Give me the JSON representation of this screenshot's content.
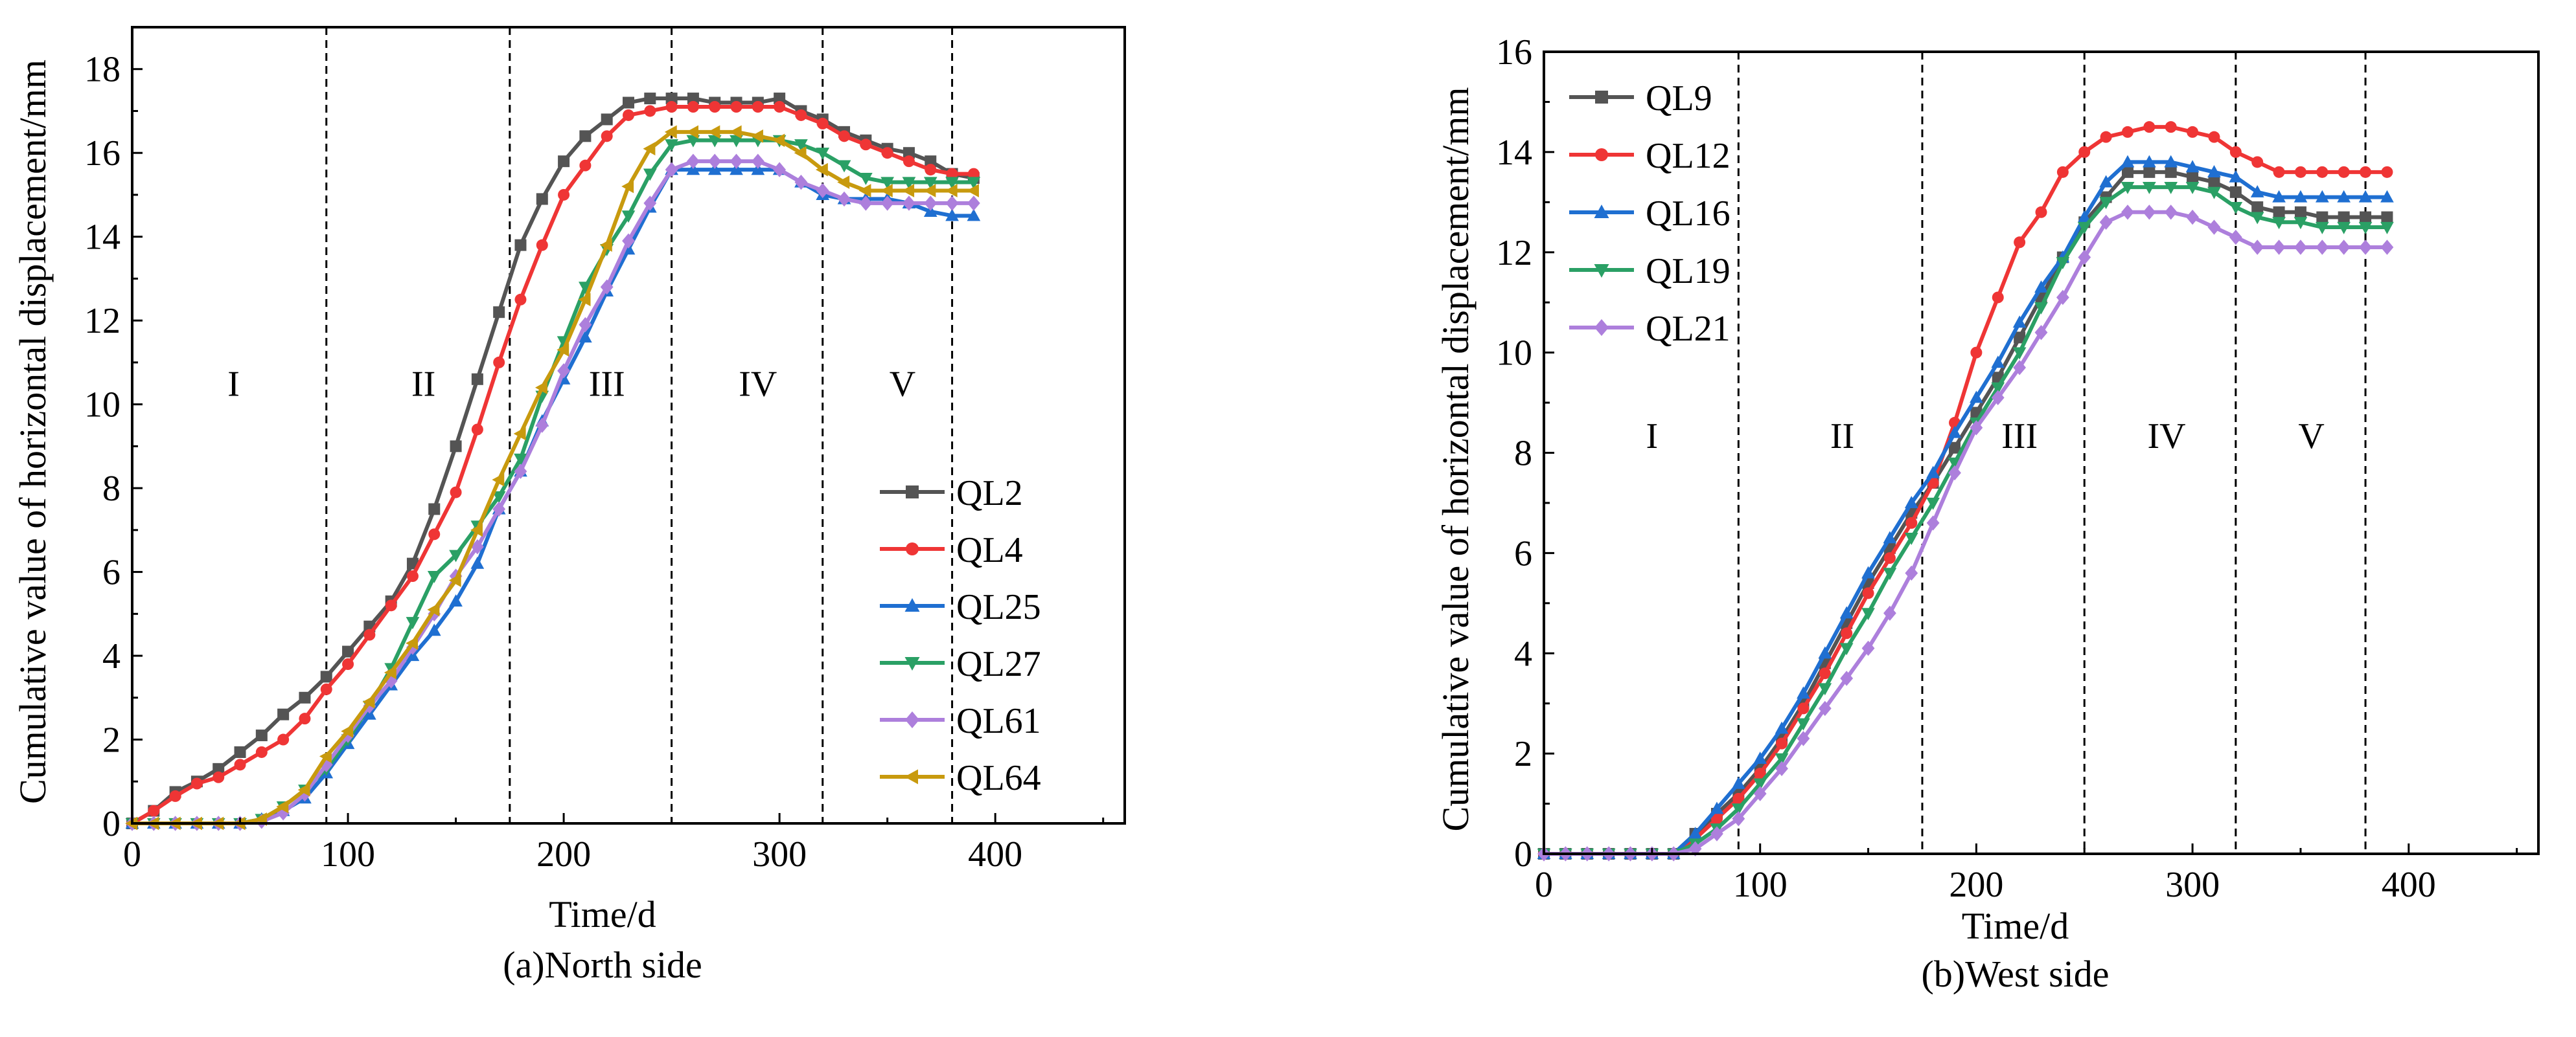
{
  "chart_data": [
    {
      "type": "line",
      "caption": "(a)North side",
      "xlabel": "Time/d",
      "ylabel": "Cumulative value of horizontal displacement/mm",
      "xlim": [
        0,
        460
      ],
      "ylim": [
        0,
        19
      ],
      "xticks": [
        0,
        100,
        200,
        300,
        400
      ],
      "yticks": [
        0,
        2,
        4,
        6,
        8,
        10,
        12,
        14,
        16,
        18
      ],
      "grid": false,
      "legend_position": "bottom-right",
      "stage_lines": [
        90,
        175,
        250,
        320,
        380
      ],
      "stage_labels": [
        {
          "text": "I",
          "x": 47,
          "y": 10.2
        },
        {
          "text": "II",
          "x": 135,
          "y": 10.2
        },
        {
          "text": "III",
          "x": 220,
          "y": 10.2
        },
        {
          "text": "IV",
          "x": 290,
          "y": 10.2
        },
        {
          "text": "V",
          "x": 357,
          "y": 10.2
        }
      ],
      "x": [
        0,
        10,
        20,
        30,
        40,
        50,
        60,
        70,
        80,
        90,
        100,
        110,
        120,
        130,
        140,
        150,
        160,
        170,
        180,
        190,
        200,
        210,
        220,
        230,
        240,
        250,
        260,
        270,
        280,
        290,
        300,
        310,
        320,
        330,
        340,
        350,
        360,
        370,
        380,
        390
      ],
      "series": [
        {
          "name": "QL2",
          "color": "#545454",
          "marker": "square",
          "values": [
            0.0,
            0.3,
            0.75,
            1.0,
            1.3,
            1.7,
            2.1,
            2.6,
            3.0,
            3.5,
            4.1,
            4.7,
            5.3,
            6.2,
            7.5,
            9.0,
            10.6,
            12.2,
            13.8,
            14.9,
            15.8,
            16.4,
            16.8,
            17.2,
            17.3,
            17.3,
            17.3,
            17.2,
            17.2,
            17.2,
            17.3,
            17.0,
            16.8,
            16.5,
            16.3,
            16.1,
            16.0,
            15.8,
            15.5,
            15.4
          ]
        },
        {
          "name": "QL4",
          "color": "#ef3535",
          "marker": "circle",
          "values": [
            0.0,
            0.3,
            0.65,
            0.95,
            1.1,
            1.4,
            1.7,
            2.0,
            2.5,
            3.2,
            3.8,
            4.5,
            5.2,
            5.9,
            6.9,
            7.9,
            9.4,
            11.0,
            12.5,
            13.8,
            15.0,
            15.7,
            16.4,
            16.9,
            17.0,
            17.1,
            17.1,
            17.1,
            17.1,
            17.1,
            17.1,
            16.9,
            16.7,
            16.4,
            16.2,
            16.0,
            15.8,
            15.6,
            15.5,
            15.5
          ]
        },
        {
          "name": "QL25",
          "color": "#1f6fd1",
          "marker": "triangle-up",
          "values": [
            0.0,
            0.0,
            0.0,
            0.0,
            0.0,
            0.0,
            0.1,
            0.3,
            0.6,
            1.2,
            1.9,
            2.6,
            3.3,
            4.0,
            4.6,
            5.3,
            6.2,
            7.5,
            8.4,
            9.6,
            10.6,
            11.6,
            12.7,
            13.7,
            14.7,
            15.6,
            15.6,
            15.6,
            15.6,
            15.6,
            15.6,
            15.3,
            15.0,
            14.9,
            14.9,
            14.9,
            14.8,
            14.6,
            14.5,
            14.5
          ]
        },
        {
          "name": "QL27",
          "color": "#2aa065",
          "marker": "triangle-down",
          "values": [
            0.0,
            0.0,
            0.0,
            0.0,
            0.0,
            0.0,
            0.1,
            0.4,
            0.8,
            1.3,
            2.0,
            2.8,
            3.7,
            4.8,
            5.9,
            6.4,
            7.1,
            7.8,
            8.7,
            10.2,
            11.5,
            12.8,
            13.7,
            14.5,
            15.5,
            16.2,
            16.3,
            16.3,
            16.3,
            16.3,
            16.3,
            16.2,
            16.0,
            15.7,
            15.4,
            15.3,
            15.3,
            15.3,
            15.3,
            15.3
          ]
        },
        {
          "name": "QL61",
          "color": "#ad7fdc",
          "marker": "diamond",
          "values": [
            0.0,
            0.0,
            0.0,
            0.0,
            0.0,
            0.0,
            0.05,
            0.25,
            0.7,
            1.4,
            2.1,
            2.8,
            3.4,
            4.2,
            5.0,
            5.9,
            6.6,
            7.5,
            8.4,
            9.5,
            10.8,
            11.9,
            12.8,
            13.9,
            14.8,
            15.6,
            15.8,
            15.8,
            15.8,
            15.8,
            15.6,
            15.3,
            15.1,
            14.9,
            14.8,
            14.8,
            14.8,
            14.8,
            14.8,
            14.8
          ]
        },
        {
          "name": "QL64",
          "color": "#c89a0e",
          "marker": "triangle-left",
          "values": [
            0.0,
            0.0,
            0.0,
            0.0,
            0.0,
            0.0,
            0.1,
            0.4,
            0.8,
            1.6,
            2.2,
            2.9,
            3.6,
            4.3,
            5.1,
            5.8,
            7.0,
            8.2,
            9.3,
            10.4,
            11.3,
            12.5,
            13.8,
            15.2,
            16.1,
            16.5,
            16.5,
            16.5,
            16.5,
            16.4,
            16.3,
            16.0,
            15.6,
            15.3,
            15.1,
            15.1,
            15.1,
            15.1,
            15.1,
            15.1
          ]
        }
      ]
    },
    {
      "type": "line",
      "caption": "(b)West side",
      "xlabel": "Time/d",
      "ylabel": "Cumulative value of horizontal displacement/mm",
      "xlim": [
        0,
        460
      ],
      "ylim": [
        0,
        16
      ],
      "xticks": [
        0,
        100,
        200,
        300,
        400
      ],
      "yticks": [
        0,
        2,
        4,
        6,
        8,
        10,
        12,
        14,
        16
      ],
      "grid": false,
      "legend_position": "top-left",
      "stage_lines": [
        90,
        175,
        250,
        320,
        380
      ],
      "stage_labels": [
        {
          "text": "I",
          "x": 50,
          "y": 8.1
        },
        {
          "text": "II",
          "x": 138,
          "y": 8.1
        },
        {
          "text": "III",
          "x": 220,
          "y": 8.1
        },
        {
          "text": "IV",
          "x": 288,
          "y": 8.1
        },
        {
          "text": "V",
          "x": 355,
          "y": 8.1
        }
      ],
      "x": [
        0,
        10,
        20,
        30,
        40,
        50,
        60,
        70,
        80,
        90,
        100,
        110,
        120,
        130,
        140,
        150,
        160,
        170,
        180,
        190,
        200,
        210,
        220,
        230,
        240,
        250,
        260,
        270,
        280,
        290,
        300,
        310,
        320,
        330,
        340,
        350,
        360,
        370,
        380,
        390
      ],
      "series": [
        {
          "name": "QL9",
          "color": "#545454",
          "marker": "square",
          "values": [
            0.0,
            0.0,
            0.0,
            0.0,
            0.0,
            0.0,
            0.0,
            0.4,
            0.8,
            1.2,
            1.7,
            2.3,
            3.0,
            3.8,
            4.6,
            5.4,
            6.1,
            6.8,
            7.4,
            8.1,
            8.8,
            9.5,
            10.3,
            11.1,
            11.9,
            12.6,
            13.1,
            13.6,
            13.6,
            13.6,
            13.5,
            13.4,
            13.2,
            12.9,
            12.8,
            12.8,
            12.7,
            12.7,
            12.7,
            12.7
          ]
        },
        {
          "name": "QL12",
          "color": "#ef3535",
          "marker": "circle",
          "values": [
            0.0,
            0.0,
            0.0,
            0.0,
            0.0,
            0.0,
            0.0,
            0.3,
            0.7,
            1.1,
            1.6,
            2.2,
            2.9,
            3.6,
            4.4,
            5.2,
            5.9,
            6.6,
            7.4,
            8.6,
            10.0,
            11.1,
            12.2,
            12.8,
            13.6,
            14.0,
            14.3,
            14.4,
            14.5,
            14.5,
            14.4,
            14.3,
            14.0,
            13.8,
            13.6,
            13.6,
            13.6,
            13.6,
            13.6,
            13.6
          ]
        },
        {
          "name": "QL16",
          "color": "#1f6fd1",
          "marker": "triangle-up",
          "values": [
            0.0,
            0.0,
            0.0,
            0.0,
            0.0,
            0.0,
            0.0,
            0.4,
            0.9,
            1.4,
            1.9,
            2.5,
            3.2,
            4.0,
            4.8,
            5.6,
            6.3,
            7.0,
            7.6,
            8.4,
            9.1,
            9.8,
            10.6,
            11.3,
            11.9,
            12.7,
            13.4,
            13.8,
            13.8,
            13.8,
            13.7,
            13.6,
            13.5,
            13.2,
            13.1,
            13.1,
            13.1,
            13.1,
            13.1,
            13.1
          ]
        },
        {
          "name": "QL19",
          "color": "#2aa065",
          "marker": "triangle-down",
          "values": [
            0.0,
            0.0,
            0.0,
            0.0,
            0.0,
            0.0,
            0.0,
            0.2,
            0.5,
            0.9,
            1.4,
            1.9,
            2.6,
            3.3,
            4.1,
            4.8,
            5.6,
            6.3,
            7.0,
            7.8,
            8.6,
            9.3,
            10.0,
            10.9,
            11.8,
            12.5,
            13.0,
            13.3,
            13.3,
            13.3,
            13.3,
            13.2,
            12.9,
            12.7,
            12.6,
            12.6,
            12.5,
            12.5,
            12.5,
            12.5
          ]
        },
        {
          "name": "QL21",
          "color": "#ad7fdc",
          "marker": "diamond",
          "values": [
            0.0,
            0.0,
            0.0,
            0.0,
            0.0,
            0.0,
            0.0,
            0.1,
            0.4,
            0.7,
            1.2,
            1.7,
            2.3,
            2.9,
            3.5,
            4.1,
            4.8,
            5.6,
            6.6,
            7.6,
            8.5,
            9.1,
            9.7,
            10.4,
            11.1,
            11.9,
            12.6,
            12.8,
            12.8,
            12.8,
            12.7,
            12.5,
            12.3,
            12.1,
            12.1,
            12.1,
            12.1,
            12.1,
            12.1,
            12.1
          ]
        }
      ]
    }
  ]
}
